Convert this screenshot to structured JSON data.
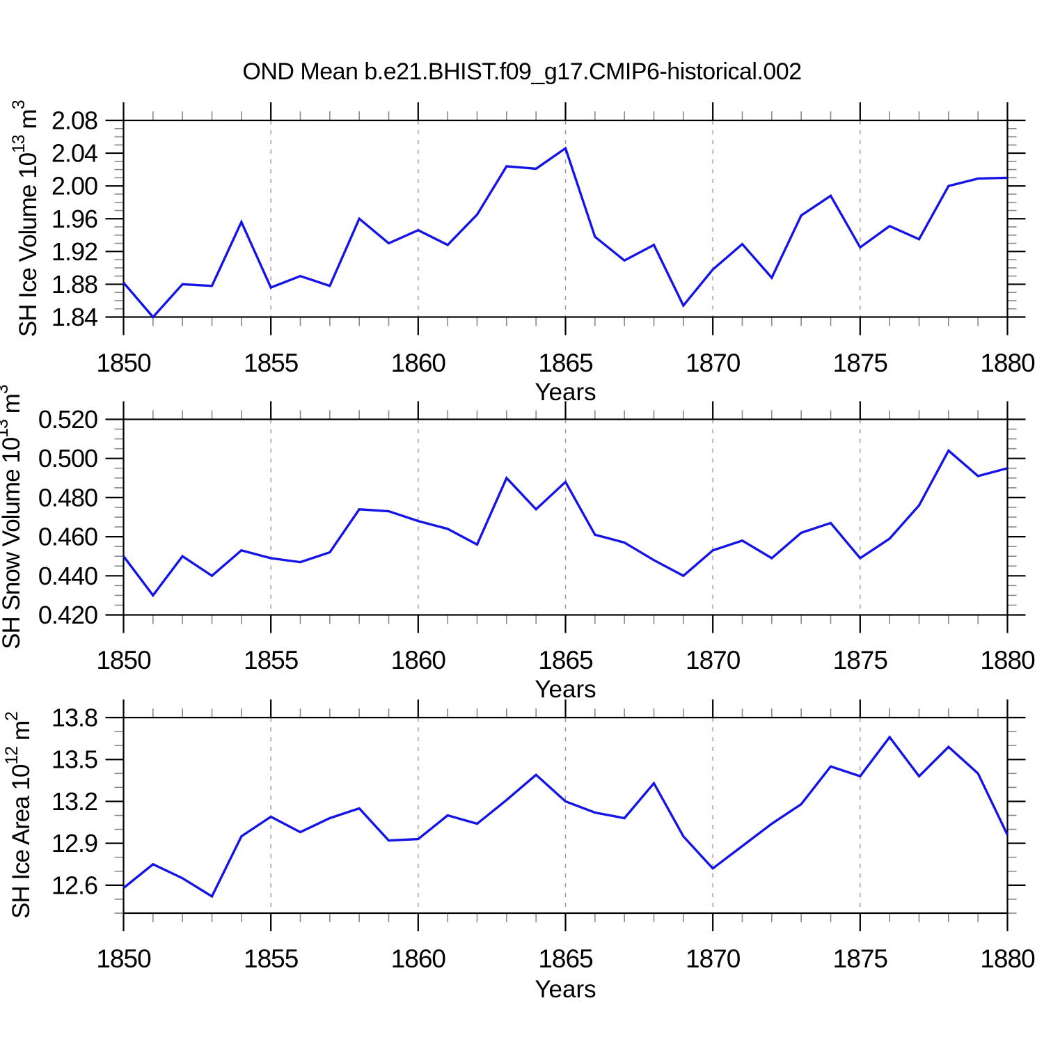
{
  "title": "OND Mean b.e21.BHIST.f09_g17.CMIP6-historical.002",
  "style": {
    "background": "#ffffff",
    "line_color": "#1414e6",
    "axis_color": "#000000",
    "minor_tick_color": "#888888",
    "grid_color": "#999999",
    "text_color": "#000000"
  },
  "chart_data": [
    {
      "id": "sh-ice-volume",
      "type": "line",
      "xlabel": "Years",
      "ylabel": {
        "base": "SH Ice Volume 10",
        "exp": "13",
        "unit": " m",
        "unit_exp": "3"
      },
      "x": [
        1850,
        1851,
        1852,
        1853,
        1854,
        1855,
        1856,
        1857,
        1858,
        1859,
        1860,
        1861,
        1862,
        1863,
        1864,
        1865,
        1866,
        1867,
        1868,
        1869,
        1870,
        1871,
        1872,
        1873,
        1874,
        1875,
        1876,
        1877,
        1878,
        1879,
        1880
      ],
      "values": [
        1.882,
        1.84,
        1.88,
        1.878,
        1.956,
        1.876,
        1.89,
        1.878,
        1.96,
        1.93,
        1.946,
        1.928,
        1.965,
        2.024,
        2.021,
        2.046,
        1.938,
        1.909,
        1.928,
        1.854,
        1.898,
        1.929,
        1.888,
        1.964,
        1.988,
        1.925,
        1.951,
        1.935,
        2.0,
        2.009,
        2.01
      ],
      "xlim": [
        1850,
        1880
      ],
      "ylim": [
        1.84,
        2.08
      ],
      "xticks": [
        1850,
        1855,
        1860,
        1865,
        1870,
        1875,
        1880
      ],
      "x_minor_step": 1,
      "yticks": [
        1.84,
        1.88,
        1.92,
        1.96,
        2.0,
        2.04,
        2.08
      ],
      "ytick_labels": [
        "1.84",
        "1.88",
        "1.92",
        "1.96",
        "2.00",
        "2.04",
        "2.08"
      ],
      "y_minor_step": 0.01,
      "grid_x": [
        1855,
        1860,
        1865,
        1870,
        1875
      ],
      "grid": "vertical-dashed",
      "legend": "none"
    },
    {
      "id": "sh-snow-volume",
      "type": "line",
      "xlabel": "Years",
      "ylabel": {
        "base": "SH Snow Volume 10",
        "exp": "13",
        "unit": " m",
        "unit_exp": "3"
      },
      "x": [
        1850,
        1851,
        1852,
        1853,
        1854,
        1855,
        1856,
        1857,
        1858,
        1859,
        1860,
        1861,
        1862,
        1863,
        1864,
        1865,
        1866,
        1867,
        1868,
        1869,
        1870,
        1871,
        1872,
        1873,
        1874,
        1875,
        1876,
        1877,
        1878,
        1879,
        1880
      ],
      "values": [
        0.45,
        0.43,
        0.45,
        0.44,
        0.453,
        0.449,
        0.447,
        0.452,
        0.474,
        0.473,
        0.468,
        0.464,
        0.456,
        0.49,
        0.474,
        0.488,
        0.461,
        0.457,
        0.448,
        0.44,
        0.453,
        0.458,
        0.449,
        0.462,
        0.467,
        0.449,
        0.459,
        0.476,
        0.504,
        0.491,
        0.495
      ],
      "xlim": [
        1850,
        1880
      ],
      "ylim": [
        0.42,
        0.52
      ],
      "xticks": [
        1850,
        1855,
        1860,
        1865,
        1870,
        1875,
        1880
      ],
      "x_minor_step": 1,
      "yticks": [
        0.42,
        0.44,
        0.46,
        0.48,
        0.5,
        0.52
      ],
      "ytick_labels": [
        "0.420",
        "0.440",
        "0.460",
        "0.480",
        "0.500",
        "0.520"
      ],
      "y_minor_step": 0.005,
      "grid_x": [
        1855,
        1860,
        1865,
        1870,
        1875
      ],
      "grid": "vertical-dashed",
      "legend": "none"
    },
    {
      "id": "sh-ice-area",
      "type": "line",
      "xlabel": "Years",
      "ylabel": {
        "base": "SH Ice Area 10",
        "exp": "12",
        "unit": " m",
        "unit_exp": "2"
      },
      "x": [
        1850,
        1851,
        1852,
        1853,
        1854,
        1855,
        1856,
        1857,
        1858,
        1859,
        1860,
        1861,
        1862,
        1863,
        1864,
        1865,
        1866,
        1867,
        1868,
        1869,
        1870,
        1871,
        1872,
        1873,
        1874,
        1875,
        1876,
        1877,
        1878,
        1879,
        1880
      ],
      "values": [
        12.58,
        12.75,
        12.65,
        12.52,
        12.95,
        13.09,
        12.98,
        13.08,
        13.15,
        12.92,
        12.93,
        13.1,
        13.04,
        13.21,
        13.39,
        13.2,
        13.12,
        13.08,
        13.33,
        12.95,
        12.72,
        12.88,
        13.04,
        13.18,
        13.45,
        13.38,
        13.66,
        13.38,
        13.59,
        13.4,
        12.96
      ],
      "xlim": [
        1850,
        1880
      ],
      "ylim": [
        12.4,
        13.8
      ],
      "xticks": [
        1850,
        1855,
        1860,
        1865,
        1870,
        1875,
        1880
      ],
      "x_minor_step": 1,
      "yticks": [
        12.6,
        12.9,
        13.2,
        13.5,
        13.8
      ],
      "ytick_labels": [
        "12.6",
        "12.9",
        "13.2",
        "13.5",
        "13.8"
      ],
      "y_minor_step": 0.1,
      "grid_x": [
        1855,
        1860,
        1865,
        1870,
        1875
      ],
      "grid": "vertical-dashed",
      "legend": "none"
    }
  ]
}
